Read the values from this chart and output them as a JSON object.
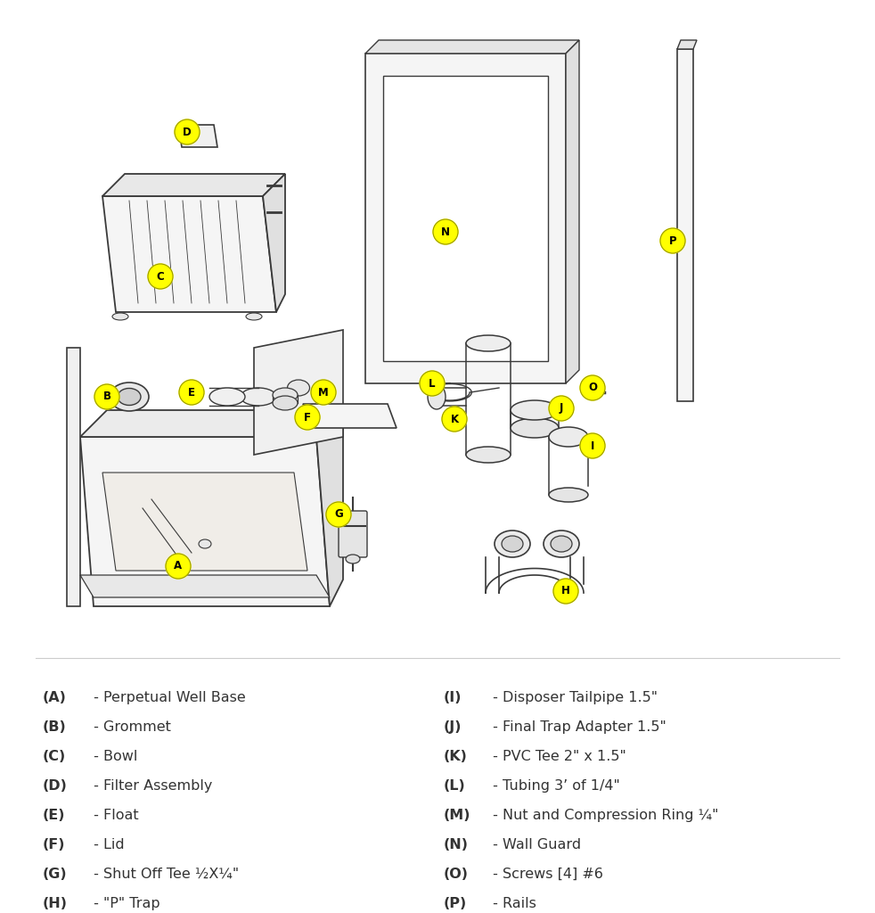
{
  "background_color": "#ffffff",
  "line_color": "#3a3a3a",
  "label_bg_color": "#ffff00",
  "legend_left": [
    [
      "(A)",
      " - Perpetual Well Base"
    ],
    [
      "(B)",
      " - Grommet"
    ],
    [
      "(C)",
      " - Bowl"
    ],
    [
      "(D)",
      " - Filter Assembly"
    ],
    [
      "(E)",
      " - Float"
    ],
    [
      "(F)",
      " - Lid"
    ],
    [
      "(G)",
      " - Shut Off Tee ½X¼\""
    ],
    [
      "(H)",
      " - \"P\" Trap"
    ]
  ],
  "legend_right": [
    [
      "(I)",
      " - Disposer Tailpipe 1.5\""
    ],
    [
      "(J)",
      " - Final Trap Adapter 1.5\""
    ],
    [
      "(K)",
      " - PVC Tee 2\" x 1.5\""
    ],
    [
      "(L)",
      " - Tubing 3’ of 1/4\""
    ],
    [
      "(M)",
      " - Nut and Compression Ring ¼\""
    ],
    [
      "(N)",
      " - Wall Guard"
    ],
    [
      "(O)",
      " - Screws [4] #6"
    ],
    [
      "(P)",
      " - Rails"
    ]
  ],
  "figsize": [
    9.82,
    10.24
  ],
  "dpi": 100
}
